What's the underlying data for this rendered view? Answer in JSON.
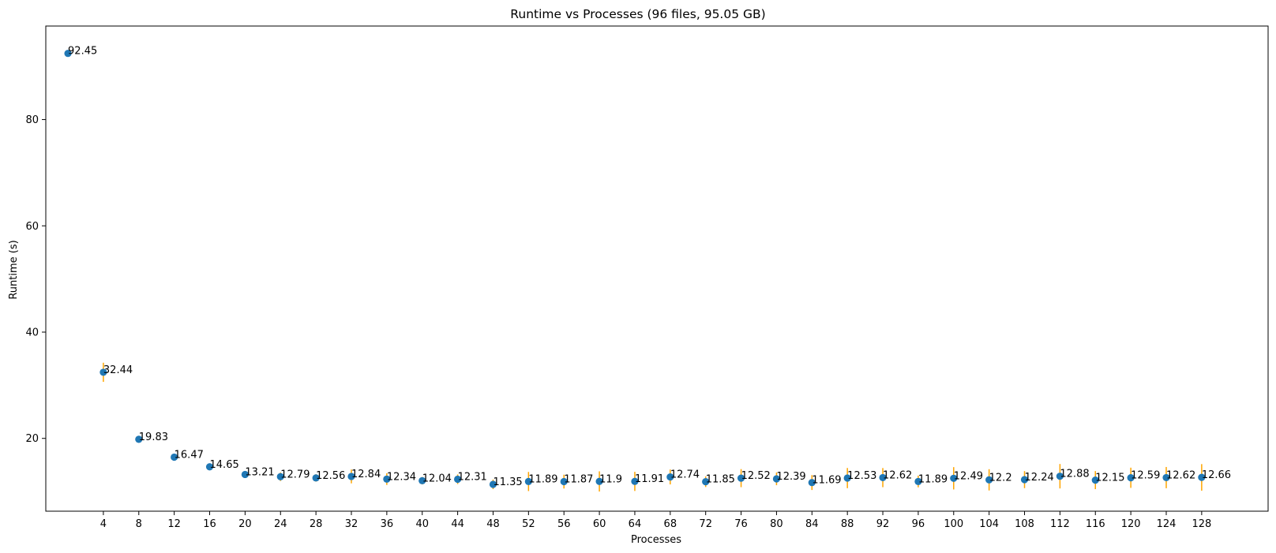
{
  "chart_data": {
    "type": "scatter",
    "title": "Runtime vs Processes (96 files, 95.05 GB)",
    "xlabel": "Processes",
    "ylabel": "Runtime (s)",
    "xlim": [
      -2.5,
      135.5
    ],
    "ylim": [
      6.3,
      97.6
    ],
    "x_ticks": [
      4,
      8,
      12,
      16,
      20,
      24,
      28,
      32,
      36,
      40,
      44,
      48,
      52,
      56,
      60,
      64,
      68,
      72,
      76,
      80,
      84,
      88,
      92,
      96,
      100,
      104,
      108,
      112,
      116,
      120,
      124,
      128
    ],
    "y_ticks": [
      20,
      40,
      60,
      80
    ],
    "grid": false,
    "colors": {
      "points": "#1f77b4",
      "error_bars": "#ffa500"
    },
    "series": [
      {
        "x": [
          0,
          4,
          8,
          12,
          16,
          20,
          24,
          28,
          32,
          36,
          40,
          44,
          48,
          52,
          56,
          60,
          64,
          68,
          72,
          76,
          80,
          84,
          88,
          92,
          96,
          100,
          104,
          108,
          112,
          116,
          120,
          124,
          128
        ],
        "y": [
          92.45,
          32.44,
          19.83,
          16.47,
          14.65,
          13.21,
          12.79,
          12.56,
          12.84,
          12.34,
          12.04,
          12.31,
          11.35,
          11.89,
          11.87,
          11.9,
          11.91,
          12.74,
          11.85,
          12.52,
          12.39,
          11.69,
          12.53,
          12.62,
          11.89,
          12.49,
          12.2,
          12.24,
          12.88,
          12.15,
          12.59,
          12.62,
          12.66
        ],
        "labels": [
          "92.45",
          "32.44",
          "19.83",
          "16.47",
          "14.65",
          "13.21",
          "12.79",
          "12.56",
          "12.84",
          "12.34",
          "12.04",
          "12.31",
          "11.35",
          "11.89",
          "11.87",
          "11.9",
          "11.91",
          "12.74",
          "11.85",
          "12.52",
          "12.39",
          "11.69",
          "12.53",
          "12.62",
          "11.89",
          "12.49",
          "12.2",
          "12.24",
          "12.88",
          "12.15",
          "12.59",
          "12.62",
          "12.66"
        ],
        "error": [
          0.3,
          1.8,
          0.4,
          0.4,
          0.3,
          0.6,
          0.8,
          0.7,
          1.3,
          1.1,
          0.7,
          0.9,
          0.9,
          1.8,
          1.3,
          1.9,
          1.8,
          1.4,
          1.0,
          1.7,
          1.2,
          1.4,
          1.9,
          1.8,
          1.1,
          2.1,
          2.0,
          1.6,
          2.3,
          1.7,
          1.9,
          2.0,
          2.5
        ]
      }
    ]
  }
}
